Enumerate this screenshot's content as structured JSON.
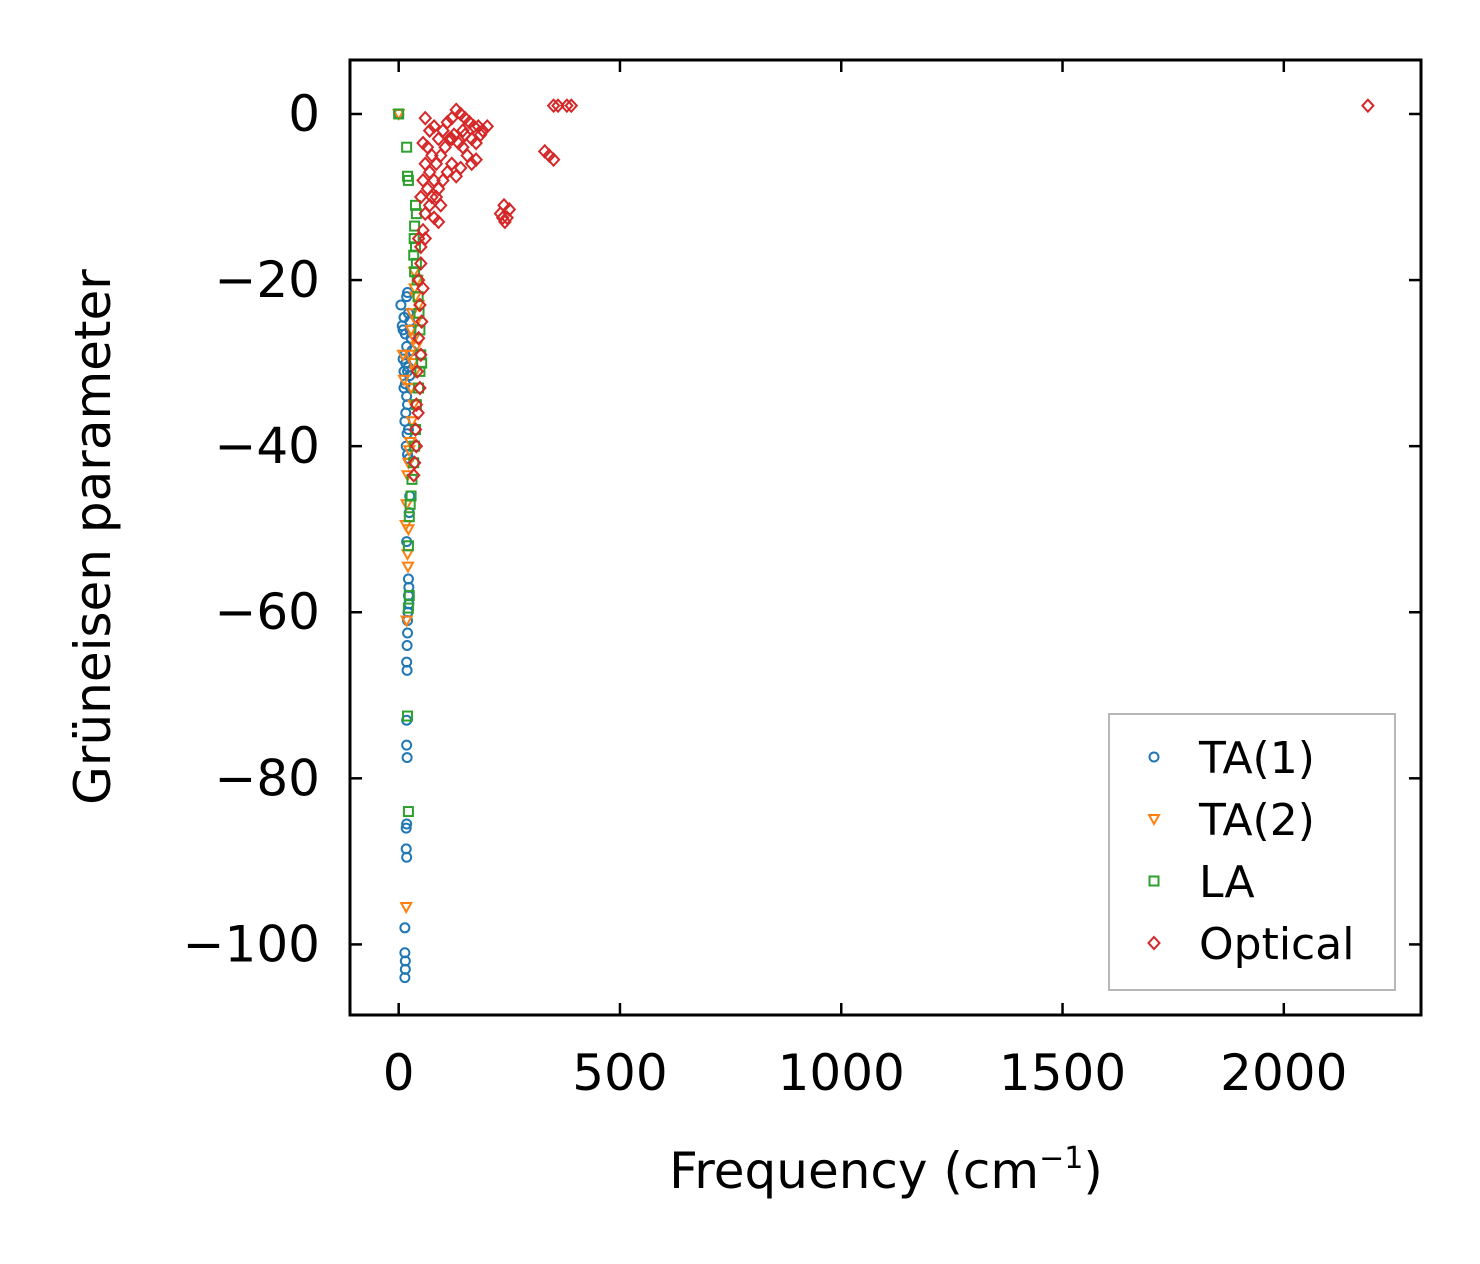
{
  "chart_data": {
    "type": "scatter",
    "title": "",
    "xlabel": "Frequency (cm",
    "xlabel_sup": "−1",
    "xlabel_close": ")",
    "ylabel": "Grüneisen parameter",
    "xlim": [
      -110,
      2310
    ],
    "ylim": [
      -108.5,
      6.5
    ],
    "xticks": [
      0,
      500,
      1000,
      1500,
      2000
    ],
    "xtick_labels": [
      "0",
      "500",
      "1000",
      "1500",
      "2000"
    ],
    "yticks": [
      0,
      -20,
      -40,
      -60,
      -80,
      -100
    ],
    "ytick_labels": [
      "0",
      "−20",
      "−40",
      "−60",
      "−80",
      "−100"
    ],
    "grid": false,
    "legend_position": "lower-right",
    "series": [
      {
        "name": "TA(1)",
        "marker": "circle",
        "color": "#1f77b4",
        "points": [
          [
            0,
            0
          ],
          [
            5,
            -23
          ],
          [
            8,
            -25.5
          ],
          [
            10,
            -26
          ],
          [
            12,
            -24.5
          ],
          [
            15,
            -26.5
          ],
          [
            18,
            -22
          ],
          [
            20,
            -21.5
          ],
          [
            22,
            -24
          ],
          [
            25,
            -25
          ],
          [
            18,
            -28
          ],
          [
            14,
            -29
          ],
          [
            10,
            -29.5
          ],
          [
            12,
            -31
          ],
          [
            16,
            -30
          ],
          [
            20,
            -31
          ],
          [
            22,
            -30.5
          ],
          [
            15,
            -32.5
          ],
          [
            12,
            -33
          ],
          [
            18,
            -34
          ],
          [
            20,
            -35
          ],
          [
            16,
            -36
          ],
          [
            14,
            -37
          ],
          [
            19,
            -38.5
          ],
          [
            22,
            -38
          ],
          [
            17,
            -40
          ],
          [
            20,
            -41
          ],
          [
            23,
            -41.5
          ],
          [
            25,
            -46
          ],
          [
            24,
            -48
          ],
          [
            18,
            -51.5
          ],
          [
            22,
            -56
          ],
          [
            23,
            -57
          ],
          [
            22,
            -58
          ],
          [
            23,
            -59
          ],
          [
            21,
            -60
          ],
          [
            20,
            -61
          ],
          [
            20,
            -62.5
          ],
          [
            19,
            -64
          ],
          [
            18,
            -66
          ],
          [
            19,
            -67
          ],
          [
            18,
            -73
          ],
          [
            18,
            -76
          ],
          [
            19,
            -77.5
          ],
          [
            18,
            -85.5
          ],
          [
            17,
            -86
          ],
          [
            17,
            -88.5
          ],
          [
            18,
            -89.5
          ],
          [
            14,
            -98
          ],
          [
            14,
            -101
          ],
          [
            15,
            -102
          ],
          [
            15,
            -103
          ],
          [
            14,
            -104
          ],
          [
            26,
            -26
          ],
          [
            28,
            -27
          ],
          [
            30,
            -28.5
          ],
          [
            25,
            -31.5
          ],
          [
            27,
            -33
          ]
        ]
      },
      {
        "name": "TA(2)",
        "marker": "triangle-down",
        "color": "#ff7f0e",
        "points": [
          [
            0,
            0
          ],
          [
            35,
            -19
          ],
          [
            42,
            -20
          ],
          [
            38,
            -22
          ],
          [
            45,
            -23
          ],
          [
            30,
            -24
          ],
          [
            28,
            -26
          ],
          [
            35,
            -27
          ],
          [
            40,
            -28
          ],
          [
            25,
            -29
          ],
          [
            32,
            -30
          ],
          [
            38,
            -31
          ],
          [
            28,
            -33
          ],
          [
            34,
            -35
          ],
          [
            30,
            -37
          ],
          [
            26,
            -39.5
          ],
          [
            24,
            -40.5
          ],
          [
            22,
            -42
          ],
          [
            20,
            -43.5
          ],
          [
            18,
            -47
          ],
          [
            16,
            -49.5
          ],
          [
            22,
            -50
          ],
          [
            20,
            -53
          ],
          [
            21,
            -54.5
          ],
          [
            18,
            -61
          ],
          [
            17,
            -95.5
          ],
          [
            10,
            -29
          ],
          [
            12,
            -32
          ],
          [
            40,
            -25
          ],
          [
            36,
            -21
          ]
        ]
      },
      {
        "name": "LA",
        "marker": "square",
        "color": "#2ca02c",
        "points": [
          [
            0,
            0
          ],
          [
            18,
            -4
          ],
          [
            20,
            -7.5
          ],
          [
            22,
            -8
          ],
          [
            38,
            -11
          ],
          [
            40,
            -12
          ],
          [
            36,
            -13.5
          ],
          [
            35,
            -15
          ],
          [
            38,
            -16
          ],
          [
            34,
            -17
          ],
          [
            40,
            -18
          ],
          [
            36,
            -19
          ],
          [
            42,
            -20
          ],
          [
            44,
            -22
          ],
          [
            46,
            -24
          ],
          [
            48,
            -26
          ],
          [
            50,
            -29
          ],
          [
            52,
            -30
          ],
          [
            48,
            -31
          ],
          [
            45,
            -33
          ],
          [
            40,
            -35
          ],
          [
            38,
            -38
          ],
          [
            36,
            -40
          ],
          [
            34,
            -42
          ],
          [
            30,
            -44
          ],
          [
            28,
            -46
          ],
          [
            26,
            -47
          ],
          [
            24,
            -48.5
          ],
          [
            22,
            -52
          ],
          [
            24,
            -58
          ],
          [
            22,
            -59.5
          ],
          [
            20,
            -72.5
          ],
          [
            22,
            -84
          ]
        ]
      },
      {
        "name": "Optical",
        "marker": "diamond",
        "color": "#d62728",
        "points": [
          [
            60,
            -0.5
          ],
          [
            70,
            -2
          ],
          [
            80,
            -1.5
          ],
          [
            90,
            -3
          ],
          [
            100,
            -2
          ],
          [
            110,
            -1
          ],
          [
            120,
            -0.5
          ],
          [
            130,
            0.5
          ],
          [
            140,
            0
          ],
          [
            150,
            -0.5
          ],
          [
            160,
            -1
          ],
          [
            170,
            -1.5
          ],
          [
            180,
            -1.5
          ],
          [
            190,
            -2
          ],
          [
            115,
            -3
          ],
          [
            125,
            -2.5
          ],
          [
            135,
            -3.5
          ],
          [
            145,
            -4
          ],
          [
            155,
            -5
          ],
          [
            165,
            -6
          ],
          [
            175,
            -5.5
          ],
          [
            105,
            -4
          ],
          [
            95,
            -5
          ],
          [
            85,
            -6
          ],
          [
            75,
            -5
          ],
          [
            65,
            -4
          ],
          [
            55,
            -3.5
          ],
          [
            60,
            -6
          ],
          [
            70,
            -7
          ],
          [
            80,
            -8
          ],
          [
            90,
            -9
          ],
          [
            100,
            -8
          ],
          [
            110,
            -7
          ],
          [
            120,
            -6
          ],
          [
            130,
            -7.5
          ],
          [
            140,
            -6.5
          ],
          [
            85,
            -10
          ],
          [
            95,
            -11
          ],
          [
            75,
            -10
          ],
          [
            65,
            -9
          ],
          [
            55,
            -8
          ],
          [
            50,
            -10
          ],
          [
            60,
            -12
          ],
          [
            70,
            -11
          ],
          [
            80,
            -12.5
          ],
          [
            90,
            -13
          ],
          [
            60,
            -15
          ],
          [
            55,
            -14
          ],
          [
            50,
            -16
          ],
          [
            45,
            -15
          ],
          [
            50,
            -18
          ],
          [
            45,
            -20
          ],
          [
            55,
            -21
          ],
          [
            48,
            -23
          ],
          [
            52,
            -25
          ],
          [
            45,
            -27
          ],
          [
            50,
            -29
          ],
          [
            42,
            -31
          ],
          [
            48,
            -33
          ],
          [
            40,
            -35
          ],
          [
            44,
            -36
          ],
          [
            38,
            -38
          ],
          [
            40,
            -40
          ],
          [
            36,
            -42
          ],
          [
            34,
            -43.5
          ],
          [
            120,
            -3
          ],
          [
            145,
            -2
          ],
          [
            165,
            -3
          ],
          [
            185,
            -2.5
          ],
          [
            200,
            -1.5
          ],
          [
            175,
            -3.5
          ],
          [
            150,
            -2.5
          ],
          [
            230,
            -12
          ],
          [
            235,
            -12.5
          ],
          [
            240,
            -13
          ],
          [
            245,
            -12.5
          ],
          [
            250,
            -11.5
          ],
          [
            238,
            -11
          ],
          [
            330,
            -4.5
          ],
          [
            340,
            -5
          ],
          [
            350,
            -5.5
          ],
          [
            350,
            1
          ],
          [
            360,
            1
          ],
          [
            380,
            1
          ],
          [
            390,
            1
          ],
          [
            2190,
            1
          ]
        ]
      }
    ]
  }
}
